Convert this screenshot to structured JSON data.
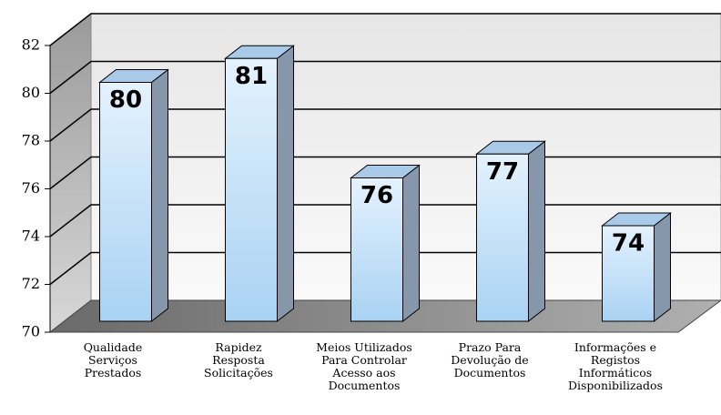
{
  "chart_data": {
    "type": "bar3d",
    "categories": [
      "Qualidade\nServiços\nPrestados",
      "Rapidez\nResposta\nSolicitações",
      "Meios Utilizados\nPara Controlar\nAcesso aos\nDocumentos",
      "Prazo Para\nDevolução de\nDocumentos",
      "Informações e\nRegistos\nInformáticos\nDisponibilizados"
    ],
    "values": [
      80,
      81,
      76,
      77,
      74
    ],
    "color": "#bcdcf6",
    "ylim": [
      70,
      82
    ],
    "yticks": [
      70,
      72,
      74,
      76,
      78,
      80,
      82
    ],
    "grid": true
  }
}
